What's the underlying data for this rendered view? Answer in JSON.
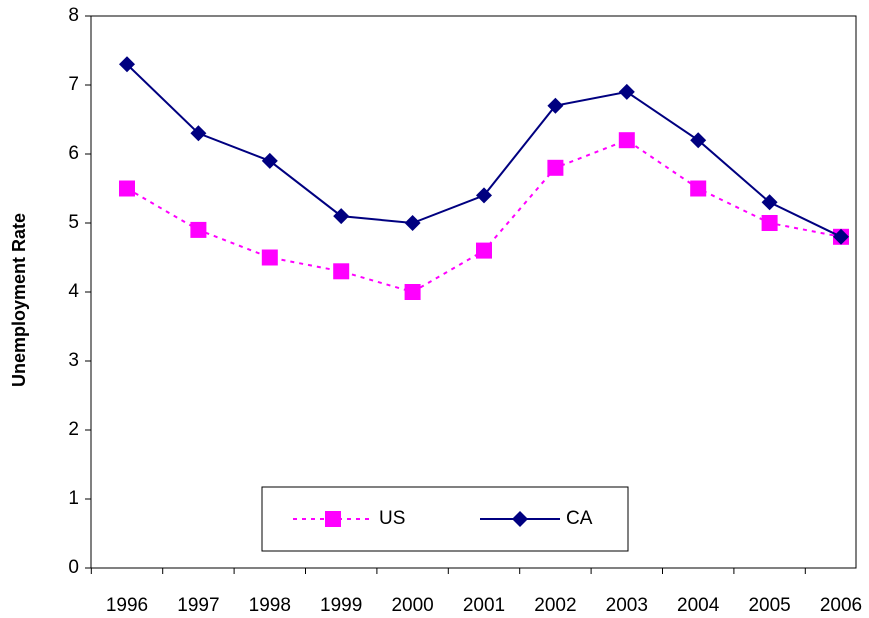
{
  "chart_data": {
    "type": "line",
    "y_label": "Unemployment Rate",
    "categories": [
      "1996",
      "1997",
      "1998",
      "1999",
      "2000",
      "2001",
      "2002",
      "2003",
      "2004",
      "2005",
      "2006"
    ],
    "series": [
      {
        "name": "US",
        "color": "#ff00ff",
        "line_style": "dashed",
        "marker": "square",
        "values": [
          5.5,
          4.9,
          4.5,
          4.3,
          4.0,
          4.6,
          5.8,
          6.2,
          5.5,
          5.0,
          4.8
        ]
      },
      {
        "name": "CA",
        "color": "#000080",
        "line_style": "solid",
        "marker": "diamond",
        "values": [
          7.3,
          6.3,
          5.9,
          5.1,
          5.0,
          5.4,
          6.7,
          6.9,
          6.2,
          5.3,
          4.8
        ]
      }
    ],
    "ylim": [
      0,
      8
    ],
    "yticks": [
      0,
      1,
      2,
      3,
      4,
      5,
      6,
      7,
      8
    ],
    "grid": false,
    "legend": "bottom"
  }
}
